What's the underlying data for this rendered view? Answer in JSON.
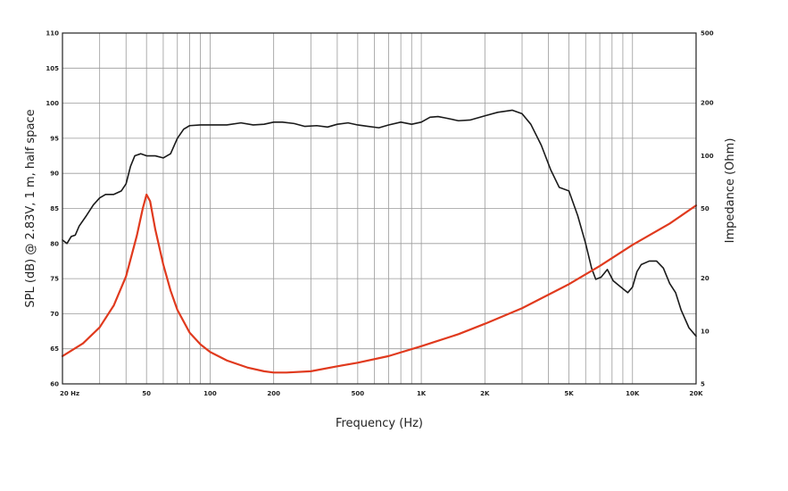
{
  "chart_data": {
    "type": "line",
    "xlabel": "Frequency (Hz)",
    "ylabel_left": "SPL (dB) @ 2.83V, 1 m, half space",
    "ylabel_right": "Impedance (Ohm)",
    "x_scale": "log",
    "xlim": [
      20,
      20000
    ],
    "ylim_left": [
      60,
      110
    ],
    "ylim_right": [
      5,
      500
    ],
    "y_right_scale": "log",
    "grid": true,
    "x_ticks": [
      {
        "value": 20,
        "label": "20 Hz"
      },
      {
        "value": 50,
        "label": "50"
      },
      {
        "value": 100,
        "label": "100"
      },
      {
        "value": 200,
        "label": "200"
      },
      {
        "value": 500,
        "label": "500"
      },
      {
        "value": 1000,
        "label": "1K"
      },
      {
        "value": 2000,
        "label": "2K"
      },
      {
        "value": 5000,
        "label": "5K"
      },
      {
        "value": 10000,
        "label": "10K"
      },
      {
        "value": 20000,
        "label": "20K"
      }
    ],
    "y_left_ticks": [
      {
        "value": 60,
        "label": "60"
      },
      {
        "value": 65,
        "label": "65"
      },
      {
        "value": 70,
        "label": "70"
      },
      {
        "value": 75,
        "label": "75"
      },
      {
        "value": 80,
        "label": "80"
      },
      {
        "value": 85,
        "label": "85"
      },
      {
        "value": 90,
        "label": "90"
      },
      {
        "value": 95,
        "label": "95"
      },
      {
        "value": 100,
        "label": "100"
      },
      {
        "value": 105,
        "label": "105"
      },
      {
        "value": 110,
        "label": "110"
      }
    ],
    "y_right_ticks": [
      {
        "value": 5,
        "label": "5"
      },
      {
        "value": 10,
        "label": "10"
      },
      {
        "value": 20,
        "label": "20"
      },
      {
        "value": 50,
        "label": "50"
      },
      {
        "value": 100,
        "label": "100"
      },
      {
        "value": 200,
        "label": "200"
      },
      {
        "value": 500,
        "label": "500"
      }
    ],
    "series": [
      {
        "axis": "left",
        "color": "#1a1a1a",
        "points": [
          [
            20,
            80.5
          ],
          [
            21,
            80.0
          ],
          [
            22,
            81.0
          ],
          [
            23,
            81.2
          ],
          [
            24,
            82.5
          ],
          [
            26,
            84.0
          ],
          [
            28,
            85.5
          ],
          [
            30,
            86.5
          ],
          [
            32,
            87.0
          ],
          [
            35,
            87.0
          ],
          [
            38,
            87.5
          ],
          [
            40,
            88.5
          ],
          [
            42,
            91.0
          ],
          [
            44,
            92.5
          ],
          [
            47,
            92.8
          ],
          [
            50,
            92.5
          ],
          [
            55,
            92.5
          ],
          [
            60,
            92.2
          ],
          [
            65,
            92.8
          ],
          [
            70,
            95.0
          ],
          [
            75,
            96.3
          ],
          [
            80,
            96.8
          ],
          [
            90,
            96.9
          ],
          [
            100,
            96.9
          ],
          [
            120,
            96.9
          ],
          [
            140,
            97.2
          ],
          [
            160,
            96.9
          ],
          [
            180,
            97.0
          ],
          [
            200,
            97.3
          ],
          [
            220,
            97.3
          ],
          [
            250,
            97.1
          ],
          [
            280,
            96.7
          ],
          [
            320,
            96.8
          ],
          [
            360,
            96.6
          ],
          [
            400,
            97.0
          ],
          [
            450,
            97.2
          ],
          [
            500,
            96.9
          ],
          [
            560,
            96.7
          ],
          [
            630,
            96.5
          ],
          [
            700,
            96.9
          ],
          [
            800,
            97.3
          ],
          [
            900,
            97.0
          ],
          [
            1000,
            97.3
          ],
          [
            1100,
            98.0
          ],
          [
            1200,
            98.1
          ],
          [
            1300,
            97.9
          ],
          [
            1500,
            97.5
          ],
          [
            1700,
            97.6
          ],
          [
            2000,
            98.2
          ],
          [
            2300,
            98.7
          ],
          [
            2700,
            99.0
          ],
          [
            3000,
            98.5
          ],
          [
            3300,
            97.0
          ],
          [
            3700,
            94.0
          ],
          [
            4100,
            90.5
          ],
          [
            4500,
            88.0
          ],
          [
            5000,
            87.5
          ],
          [
            5500,
            84.0
          ],
          [
            6000,
            80.0
          ],
          [
            6400,
            76.5
          ],
          [
            6700,
            74.9
          ],
          [
            7100,
            75.2
          ],
          [
            7600,
            76.3
          ],
          [
            8100,
            74.7
          ],
          [
            8800,
            73.8
          ],
          [
            9500,
            73.0
          ],
          [
            10000,
            73.8
          ],
          [
            10500,
            76.0
          ],
          [
            11000,
            77.0
          ],
          [
            12000,
            77.5
          ],
          [
            13000,
            77.5
          ],
          [
            14000,
            76.5
          ],
          [
            15000,
            74.3
          ],
          [
            16000,
            73.0
          ],
          [
            17000,
            70.5
          ],
          [
            18500,
            68.0
          ],
          [
            20000,
            66.8
          ]
        ]
      },
      {
        "axis": "right",
        "color": "#e03a1e",
        "points": [
          [
            20,
            7.2
          ],
          [
            25,
            8.5
          ],
          [
            30,
            10.5
          ],
          [
            35,
            14.0
          ],
          [
            40,
            20.5
          ],
          [
            45,
            35.0
          ],
          [
            48,
            50.0
          ],
          [
            50,
            60.0
          ],
          [
            52,
            55.0
          ],
          [
            55,
            38.0
          ],
          [
            60,
            24.0
          ],
          [
            65,
            17.0
          ],
          [
            70,
            13.2
          ],
          [
            80,
            9.8
          ],
          [
            90,
            8.4
          ],
          [
            100,
            7.6
          ],
          [
            120,
            6.8
          ],
          [
            150,
            6.2
          ],
          [
            180,
            5.9
          ],
          [
            200,
            5.8
          ],
          [
            230,
            5.8
          ],
          [
            300,
            5.9
          ],
          [
            400,
            6.3
          ],
          [
            500,
            6.6
          ],
          [
            700,
            7.2
          ],
          [
            1000,
            8.2
          ],
          [
            1500,
            9.6
          ],
          [
            2000,
            11.0
          ],
          [
            3000,
            13.5
          ],
          [
            5000,
            18.5
          ],
          [
            7000,
            23.5
          ],
          [
            10000,
            31.0
          ],
          [
            15000,
            41.0
          ],
          [
            20000,
            52.0
          ]
        ]
      }
    ]
  }
}
